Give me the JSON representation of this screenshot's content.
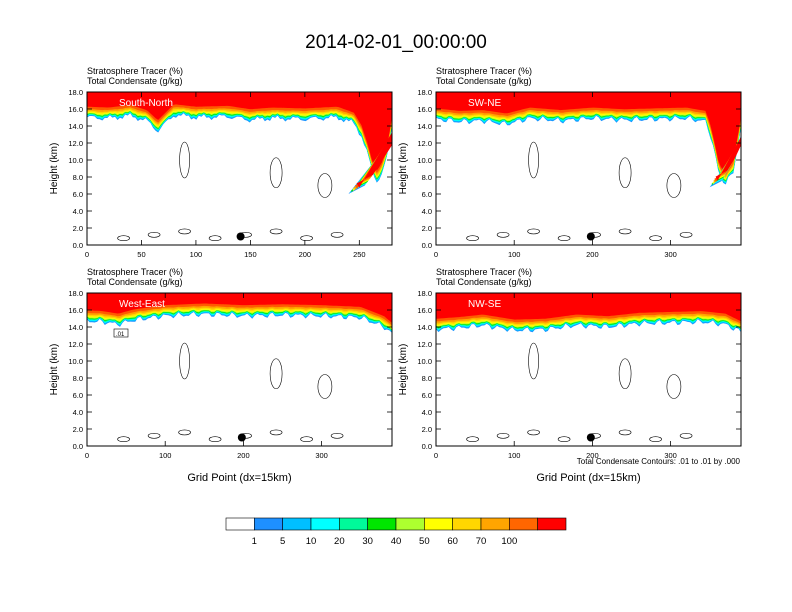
{
  "title": "2014-02-01_00:00:00",
  "colorbar": {
    "labels": [
      "1",
      "5",
      "10",
      "20",
      "30",
      "40",
      "50",
      "60",
      "70",
      "100"
    ],
    "colors": [
      "#ffffff",
      "#1e90ff",
      "#00bfff",
      "#00ffff",
      "#00fa9a",
      "#00e600",
      "#adff2f",
      "#ffff00",
      "#ffd700",
      "#ffa500",
      "#ff6600",
      "#ff0000"
    ]
  },
  "contour_note": "Total Condensate Contours: .01 to .01 by .000",
  "chart_data": [
    {
      "type": "heatmap",
      "title_line1": "Stratosphere Tracer   (%)",
      "title_line2": "Total Condensate   (g/kg)",
      "section_label": "South-North",
      "ylabel": "Height (km)",
      "xlabel": "",
      "xlim": [
        0,
        280
      ],
      "ylim": [
        0,
        18
      ],
      "xticks": [
        "0",
        "50",
        "100",
        "150",
        "200",
        "250"
      ],
      "xtick_values": [
        0,
        50,
        100,
        150,
        200,
        250
      ],
      "yticks": [
        "0.0",
        "2.0",
        "4.0",
        "6.0",
        "8.0",
        "10.0",
        "12.0",
        "14.0",
        "16.0",
        "18.0"
      ],
      "marker": {
        "x": 141,
        "y": 1.0
      },
      "box_label": "",
      "tracer_base_km": [
        [
          0,
          15.0
        ],
        [
          20,
          14.9
        ],
        [
          40,
          15.2
        ],
        [
          55,
          14.6
        ],
        [
          65,
          13.4
        ],
        [
          80,
          15.3
        ],
        [
          100,
          15.0
        ],
        [
          130,
          15.1
        ],
        [
          150,
          14.7
        ],
        [
          170,
          14.9
        ],
        [
          200,
          14.8
        ],
        [
          230,
          15.0
        ],
        [
          245,
          14.3
        ],
        [
          252,
          12.8
        ],
        [
          258,
          10.5
        ],
        [
          262,
          8.5
        ],
        [
          266,
          7.5
        ],
        [
          270,
          8.2
        ],
        [
          275,
          10.0
        ],
        [
          280,
          13.8
        ]
      ],
      "plume": [
        [
          240,
          6.0
        ],
        [
          255,
          7.0
        ],
        [
          265,
          9.0
        ],
        [
          275,
          11.0
        ],
        [
          280,
          13.5
        ]
      ]
    },
    {
      "type": "heatmap",
      "title_line1": "Stratosphere Tracer   (%)",
      "title_line2": "Total Condensate   (g/kg)",
      "section_label": "SW-NE",
      "ylabel": "Height (km)",
      "xlabel": "",
      "xlim": [
        0,
        390
      ],
      "ylim": [
        0,
        18
      ],
      "xticks": [
        "0",
        "100",
        "200",
        "300"
      ],
      "xtick_values": [
        0,
        100,
        200,
        300
      ],
      "yticks": [
        "0.0",
        "2.0",
        "4.0",
        "6.0",
        "8.0",
        "10.0",
        "12.0",
        "14.0",
        "16.0",
        "18.0"
      ],
      "marker": {
        "x": 198,
        "y": 1.0
      },
      "box_label": "",
      "tracer_base_km": [
        [
          0,
          14.8
        ],
        [
          30,
          14.5
        ],
        [
          60,
          14.6
        ],
        [
          90,
          14.2
        ],
        [
          120,
          14.9
        ],
        [
          160,
          14.6
        ],
        [
          200,
          14.9
        ],
        [
          240,
          14.7
        ],
        [
          280,
          14.8
        ],
        [
          320,
          14.9
        ],
        [
          345,
          14.5
        ],
        [
          352,
          12.5
        ],
        [
          358,
          10.0
        ],
        [
          362,
          8.2
        ],
        [
          370,
          7.2
        ],
        [
          380,
          8.5
        ],
        [
          390,
          13.8
        ]
      ],
      "plume": [
        [
          350,
          6.8
        ],
        [
          365,
          7.5
        ],
        [
          375,
          9.0
        ],
        [
          385,
          11.0
        ],
        [
          390,
          13.0
        ]
      ]
    },
    {
      "type": "heatmap",
      "title_line1": "Stratosphere Tracer   (%)",
      "title_line2": "Total Condensate   (g/kg)",
      "section_label": "West-East",
      "ylabel": "Height (km)",
      "xlabel": "Grid Point (dx=15km)",
      "xlim": [
        0,
        390
      ],
      "ylim": [
        0,
        18
      ],
      "xticks": [
        "0",
        "100",
        "200",
        "300"
      ],
      "xtick_values": [
        0,
        100,
        200,
        300
      ],
      "yticks": [
        "0.0",
        "2.0",
        "4.0",
        "6.0",
        "8.0",
        "10.0",
        "12.0",
        "14.0",
        "16.0",
        "18.0"
      ],
      "marker": {
        "x": 198,
        "y": 1.0
      },
      "box_label": ".01",
      "tracer_base_km": [
        [
          0,
          14.7
        ],
        [
          20,
          14.6
        ],
        [
          40,
          14.3
        ],
        [
          60,
          14.8
        ],
        [
          100,
          15.3
        ],
        [
          150,
          15.5
        ],
        [
          200,
          15.3
        ],
        [
          250,
          15.4
        ],
        [
          300,
          15.3
        ],
        [
          350,
          15.1
        ],
        [
          380,
          14.0
        ],
        [
          390,
          13.2
        ]
      ],
      "plume": []
    },
    {
      "type": "heatmap",
      "title_line1": "Stratosphere Tracer   (%)",
      "title_line2": "Total Condensate   (g/kg)",
      "section_label": "NW-SE",
      "ylabel": "Height (km)",
      "xlabel": "Grid Point (dx=15km)",
      "xlim": [
        0,
        390
      ],
      "ylim": [
        0,
        18
      ],
      "xticks": [
        "0",
        "100",
        "200",
        "300"
      ],
      "xtick_values": [
        0,
        100,
        200,
        300
      ],
      "yticks": [
        "0.0",
        "2.0",
        "4.0",
        "6.0",
        "8.0",
        "10.0",
        "12.0",
        "14.0",
        "16.0",
        "18.0"
      ],
      "marker": {
        "x": 198,
        "y": 1.0
      },
      "box_label": "",
      "tracer_base_km": [
        [
          0,
          13.7
        ],
        [
          30,
          13.9
        ],
        [
          60,
          14.2
        ],
        [
          100,
          13.6
        ],
        [
          140,
          13.7
        ],
        [
          180,
          14.2
        ],
        [
          220,
          14.0
        ],
        [
          260,
          14.4
        ],
        [
          300,
          14.5
        ],
        [
          340,
          14.6
        ],
        [
          370,
          14.3
        ],
        [
          390,
          13.4
        ]
      ],
      "plume": []
    }
  ]
}
